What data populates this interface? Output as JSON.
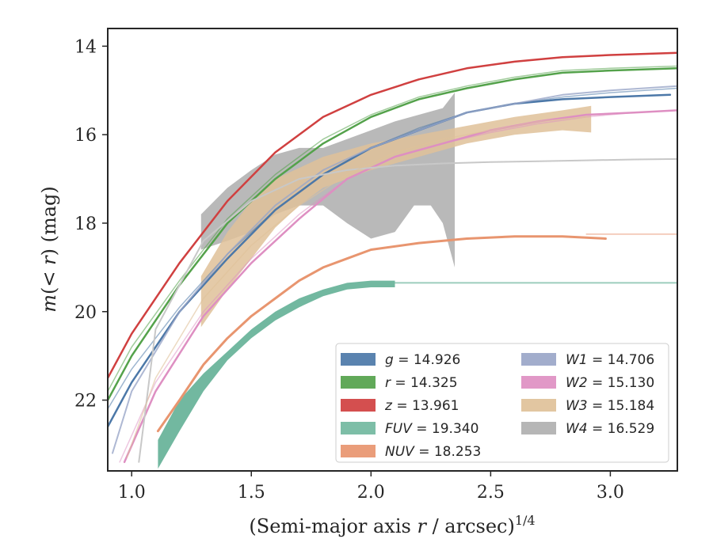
{
  "chart_data": {
    "type": "line",
    "xlabel": "(Semi-major axis r / arcsec)^1/4",
    "ylabel": "m(< r) (mag)",
    "xlim": [
      0.9,
      3.28
    ],
    "ylim": [
      23.6,
      13.6
    ],
    "y_inverted": true,
    "xticks": [
      "1.0",
      "1.5",
      "2.0",
      "2.5",
      "3.0"
    ],
    "yticks": [
      "14",
      "16",
      "18",
      "20",
      "22"
    ],
    "legend_placement": "lower-right",
    "legend": [
      {
        "band": "g",
        "value": "14.926",
        "color": "#4c78a8"
      },
      {
        "band": "r",
        "value": "14.325",
        "color": "#54a24b"
      },
      {
        "band": "z",
        "value": "13.961",
        "color": "#d04040"
      },
      {
        "band": "FUV",
        "value": "19.340",
        "color": "#72b8a0"
      },
      {
        "band": "NUV",
        "value": "18.253",
        "color": "#e8956f"
      },
      {
        "band": "W1",
        "value": "14.706",
        "color": "#9aa6c8"
      },
      {
        "band": "W2",
        "value": "15.130",
        "color": "#de8fc2"
      },
      {
        "band": "W3",
        "value": "15.184",
        "color": "#dfc199"
      },
      {
        "band": "W4",
        "value": "16.529",
        "color": "#b0b0b0"
      }
    ],
    "series": [
      {
        "key": "g",
        "color": "#4c78a8",
        "width": 2.5,
        "data": [
          [
            0.9,
            22.6
          ],
          [
            1.0,
            21.6
          ],
          [
            1.2,
            20.0
          ],
          [
            1.4,
            18.8
          ],
          [
            1.6,
            17.7
          ],
          [
            1.8,
            16.9
          ],
          [
            2.0,
            16.3
          ],
          [
            2.2,
            15.9
          ],
          [
            2.4,
            15.5
          ],
          [
            2.6,
            15.3
          ],
          [
            2.8,
            15.2
          ],
          [
            3.0,
            15.15
          ],
          [
            3.25,
            15.1
          ]
        ]
      },
      {
        "key": "g-model",
        "color": "#4c78a8",
        "width": 1.5,
        "opacity": 0.55,
        "data": [
          [
            0.9,
            22.2
          ],
          [
            1.0,
            21.3
          ],
          [
            1.2,
            19.9
          ],
          [
            1.4,
            18.7
          ],
          [
            1.6,
            17.7
          ],
          [
            1.8,
            16.9
          ],
          [
            2.0,
            16.3
          ],
          [
            2.2,
            15.85
          ],
          [
            2.4,
            15.5
          ],
          [
            2.6,
            15.3
          ],
          [
            2.8,
            15.15
          ],
          [
            3.0,
            15.05
          ],
          [
            3.28,
            14.95
          ]
        ]
      },
      {
        "key": "r",
        "color": "#54a24b",
        "width": 2.5,
        "data": [
          [
            0.9,
            22.0
          ],
          [
            1.0,
            21.0
          ],
          [
            1.2,
            19.4
          ],
          [
            1.4,
            18.0
          ],
          [
            1.6,
            17.0
          ],
          [
            1.8,
            16.2
          ],
          [
            2.0,
            15.6
          ],
          [
            2.2,
            15.2
          ],
          [
            2.4,
            14.95
          ],
          [
            2.6,
            14.75
          ],
          [
            2.8,
            14.6
          ],
          [
            3.0,
            14.55
          ],
          [
            3.28,
            14.5
          ]
        ]
      },
      {
        "key": "r-model",
        "color": "#54a24b",
        "width": 1.5,
        "opacity": 0.55,
        "data": [
          [
            0.9,
            21.8
          ],
          [
            1.0,
            20.8
          ],
          [
            1.2,
            19.3
          ],
          [
            1.4,
            17.9
          ],
          [
            1.6,
            16.9
          ],
          [
            1.8,
            16.1
          ],
          [
            2.0,
            15.55
          ],
          [
            2.2,
            15.15
          ],
          [
            2.4,
            14.9
          ],
          [
            2.6,
            14.7
          ],
          [
            2.8,
            14.55
          ],
          [
            3.0,
            14.5
          ],
          [
            3.28,
            14.45
          ]
        ]
      },
      {
        "key": "z",
        "color": "#d04040",
        "width": 2.5,
        "data": [
          [
            0.9,
            21.5
          ],
          [
            1.0,
            20.5
          ],
          [
            1.2,
            18.9
          ],
          [
            1.4,
            17.5
          ],
          [
            1.6,
            16.4
          ],
          [
            1.8,
            15.6
          ],
          [
            2.0,
            15.1
          ],
          [
            2.2,
            14.75
          ],
          [
            2.4,
            14.5
          ],
          [
            2.6,
            14.35
          ],
          [
            2.8,
            14.25
          ],
          [
            3.0,
            14.2
          ],
          [
            3.28,
            14.15
          ]
        ]
      },
      {
        "key": "W1",
        "color": "#9aa6c8",
        "width": 2.0,
        "opacity": 0.8,
        "data": [
          [
            0.92,
            23.2
          ],
          [
            1.0,
            21.8
          ],
          [
            1.2,
            20.0
          ],
          [
            1.4,
            18.7
          ],
          [
            1.6,
            17.6
          ],
          [
            1.8,
            16.8
          ],
          [
            2.0,
            16.3
          ],
          [
            2.2,
            15.9
          ],
          [
            2.4,
            15.5
          ],
          [
            2.6,
            15.3
          ],
          [
            2.8,
            15.1
          ],
          [
            3.0,
            15.0
          ],
          [
            3.28,
            14.9
          ]
        ]
      },
      {
        "key": "W2",
        "color": "#de8fc2",
        "width": 2.5,
        "data": [
          [
            0.97,
            23.4
          ],
          [
            1.1,
            21.8
          ],
          [
            1.3,
            20.1
          ],
          [
            1.5,
            18.9
          ],
          [
            1.7,
            17.9
          ],
          [
            1.9,
            17.0
          ],
          [
            2.1,
            16.5
          ],
          [
            2.3,
            16.2
          ],
          [
            2.5,
            15.9
          ],
          [
            2.7,
            15.7
          ],
          [
            2.9,
            15.55
          ],
          [
            3.1,
            15.5
          ],
          [
            3.28,
            15.45
          ]
        ]
      },
      {
        "key": "W2-model",
        "color": "#de8fc2",
        "width": 1.5,
        "opacity": 0.5,
        "data": [
          [
            0.95,
            23.4
          ],
          [
            1.1,
            21.6
          ],
          [
            1.3,
            20.0
          ],
          [
            1.5,
            18.8
          ],
          [
            1.7,
            17.8
          ],
          [
            1.9,
            17.0
          ],
          [
            2.1,
            16.5
          ],
          [
            2.3,
            16.2
          ],
          [
            2.5,
            15.95
          ],
          [
            2.7,
            15.75
          ],
          [
            2.9,
            15.6
          ],
          [
            3.1,
            15.5
          ],
          [
            3.28,
            15.45
          ]
        ]
      },
      {
        "key": "W4-model",
        "color": "#c8c8c8",
        "width": 2.0,
        "data": [
          [
            1.03,
            23.4
          ],
          [
            1.1,
            20.4
          ],
          [
            1.3,
            18.4
          ],
          [
            1.5,
            17.5
          ],
          [
            1.7,
            17.0
          ],
          [
            1.9,
            16.8
          ],
          [
            2.1,
            16.7
          ],
          [
            2.3,
            16.65
          ],
          [
            2.5,
            16.62
          ],
          [
            2.7,
            16.6
          ],
          [
            2.9,
            16.58
          ],
          [
            3.1,
            16.56
          ],
          [
            3.28,
            16.55
          ]
        ]
      },
      {
        "key": "W3-model",
        "color": "#dfc199",
        "width": 1.5,
        "opacity": 0.6,
        "data": [
          [
            0.98,
            23.3
          ],
          [
            1.1,
            21.5
          ],
          [
            1.3,
            19.7
          ],
          [
            1.5,
            18.5
          ],
          [
            1.7,
            17.6
          ],
          [
            1.9,
            16.9
          ],
          [
            2.1,
            16.4
          ],
          [
            2.3,
            16.1
          ],
          [
            2.5,
            15.9
          ],
          [
            2.7,
            15.7
          ],
          [
            2.9,
            15.6
          ]
        ]
      },
      {
        "key": "NUV-model",
        "color": "#e8956f",
        "width": 1.5,
        "opacity": 0.6,
        "data": [
          [
            2.9,
            18.25
          ],
          [
            3.28,
            18.25
          ]
        ]
      },
      {
        "key": "FUV-model",
        "color": "#72b8a0",
        "width": 2.0,
        "opacity": 0.7,
        "data": [
          [
            2.1,
            19.35
          ],
          [
            3.28,
            19.35
          ]
        ]
      },
      {
        "key": "NUV",
        "color": "#e8956f",
        "width": 3.0,
        "data": [
          [
            1.11,
            22.7
          ],
          [
            1.2,
            22.0
          ],
          [
            1.3,
            21.2
          ],
          [
            1.4,
            20.6
          ],
          [
            1.5,
            20.1
          ],
          [
            1.6,
            19.7
          ],
          [
            1.7,
            19.3
          ],
          [
            1.8,
            19.0
          ],
          [
            1.9,
            18.8
          ],
          [
            2.0,
            18.6
          ],
          [
            2.2,
            18.45
          ],
          [
            2.4,
            18.35
          ],
          [
            2.6,
            18.3
          ],
          [
            2.8,
            18.3
          ],
          [
            2.98,
            18.35
          ]
        ]
      }
    ],
    "bands": [
      {
        "key": "W4",
        "color": "#a8a8a8",
        "opacity": 0.8,
        "upper": [
          [
            1.29,
            17.8
          ],
          [
            1.4,
            17.2
          ],
          [
            1.5,
            16.8
          ],
          [
            1.6,
            16.45
          ],
          [
            1.7,
            16.3
          ],
          [
            1.8,
            16.3
          ],
          [
            1.9,
            16.1
          ],
          [
            2.0,
            15.9
          ],
          [
            2.1,
            15.7
          ],
          [
            2.2,
            15.55
          ],
          [
            2.3,
            15.4
          ],
          [
            2.35,
            15.05
          ]
        ],
        "lower": [
          [
            1.29,
            18.6
          ],
          [
            1.4,
            18.4
          ],
          [
            1.5,
            18.2
          ],
          [
            1.6,
            17.8
          ],
          [
            1.7,
            17.6
          ],
          [
            1.8,
            17.6
          ],
          [
            1.9,
            18.0
          ],
          [
            2.0,
            18.35
          ],
          [
            2.1,
            18.2
          ],
          [
            2.18,
            17.6
          ],
          [
            2.25,
            17.6
          ],
          [
            2.3,
            18.0
          ],
          [
            2.35,
            19.0
          ]
        ]
      },
      {
        "key": "W3",
        "color": "#dfc199",
        "opacity": 0.85,
        "upper": [
          [
            1.29,
            19.2
          ],
          [
            1.4,
            18.2
          ],
          [
            1.5,
            17.5
          ],
          [
            1.6,
            17.0
          ],
          [
            1.8,
            16.5
          ],
          [
            2.0,
            16.2
          ],
          [
            2.2,
            16.0
          ],
          [
            2.4,
            15.8
          ],
          [
            2.6,
            15.6
          ],
          [
            2.8,
            15.45
          ],
          [
            2.92,
            15.35
          ]
        ],
        "lower": [
          [
            1.29,
            20.35
          ],
          [
            1.4,
            19.5
          ],
          [
            1.5,
            18.8
          ],
          [
            1.6,
            18.1
          ],
          [
            1.7,
            17.6
          ],
          [
            1.8,
            17.2
          ],
          [
            2.0,
            16.8
          ],
          [
            2.2,
            16.5
          ],
          [
            2.4,
            16.2
          ],
          [
            2.6,
            16.0
          ],
          [
            2.8,
            15.9
          ],
          [
            2.92,
            15.95
          ]
        ]
      },
      {
        "key": "FUV",
        "color": "#72b8a0",
        "opacity": 1.0,
        "upper": [
          [
            1.11,
            22.9
          ],
          [
            1.2,
            22.0
          ],
          [
            1.3,
            21.4
          ],
          [
            1.4,
            20.9
          ],
          [
            1.5,
            20.4
          ],
          [
            1.6,
            20.0
          ],
          [
            1.7,
            19.7
          ],
          [
            1.8,
            19.5
          ],
          [
            1.9,
            19.35
          ],
          [
            2.0,
            19.3
          ],
          [
            2.1,
            19.3
          ]
        ],
        "lower": [
          [
            1.11,
            23.55
          ],
          [
            1.2,
            22.7
          ],
          [
            1.3,
            21.8
          ],
          [
            1.4,
            21.1
          ],
          [
            1.5,
            20.6
          ],
          [
            1.6,
            20.2
          ],
          [
            1.7,
            19.9
          ],
          [
            1.8,
            19.65
          ],
          [
            1.9,
            19.5
          ],
          [
            2.0,
            19.45
          ],
          [
            2.1,
            19.45
          ]
        ]
      }
    ]
  }
}
